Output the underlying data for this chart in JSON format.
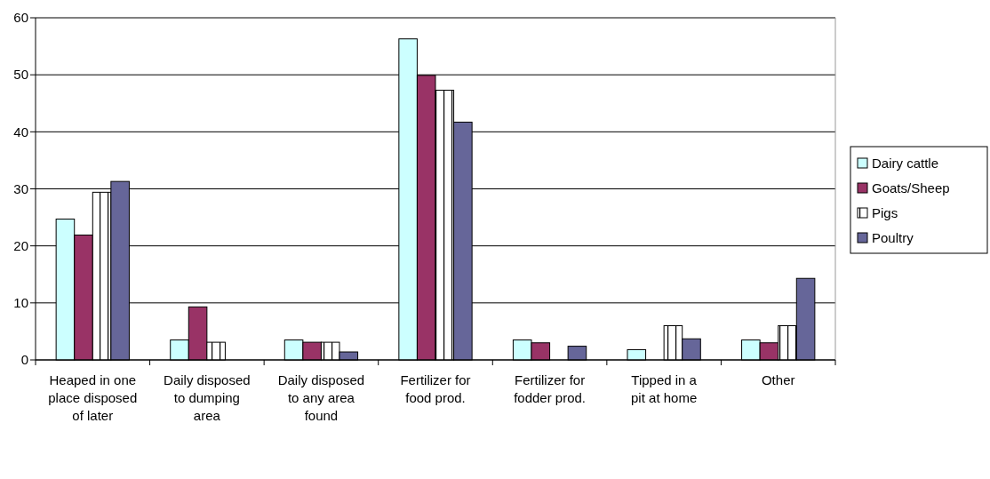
{
  "chart_data": {
    "type": "bar",
    "categories": [
      "Heaped in one place disposed of later",
      "Daily disposed to dumping area",
      "Daily disposed to any area found",
      "Fertilizer for food prod.",
      "Fertilizer for fodder prod.",
      "Tipped in a pit at home",
      "Other"
    ],
    "series": [
      {
        "name": "Dairy cattle",
        "color": "#ccffff",
        "values": [
          24.7,
          3.5,
          3.5,
          56.3,
          3.5,
          1.8,
          3.5
        ]
      },
      {
        "name": "Goats/Sheep",
        "color": "#993366",
        "values": [
          21.9,
          9.3,
          3.1,
          49.9,
          3.0,
          0,
          3.0
        ]
      },
      {
        "name": "Pigs",
        "color": "#ffffff",
        "values": [
          29.4,
          3.1,
          3.1,
          47.3,
          0,
          6.0,
          6.0
        ]
      },
      {
        "name": "Poultry",
        "color": "#666699",
        "values": [
          31.3,
          0,
          1.4,
          41.7,
          2.4,
          3.7,
          14.3
        ]
      }
    ],
    "ylim": [
      0,
      60
    ],
    "yticks": [
      0,
      10,
      20,
      30,
      40,
      50,
      60
    ],
    "grid": "y",
    "legend": "right"
  }
}
